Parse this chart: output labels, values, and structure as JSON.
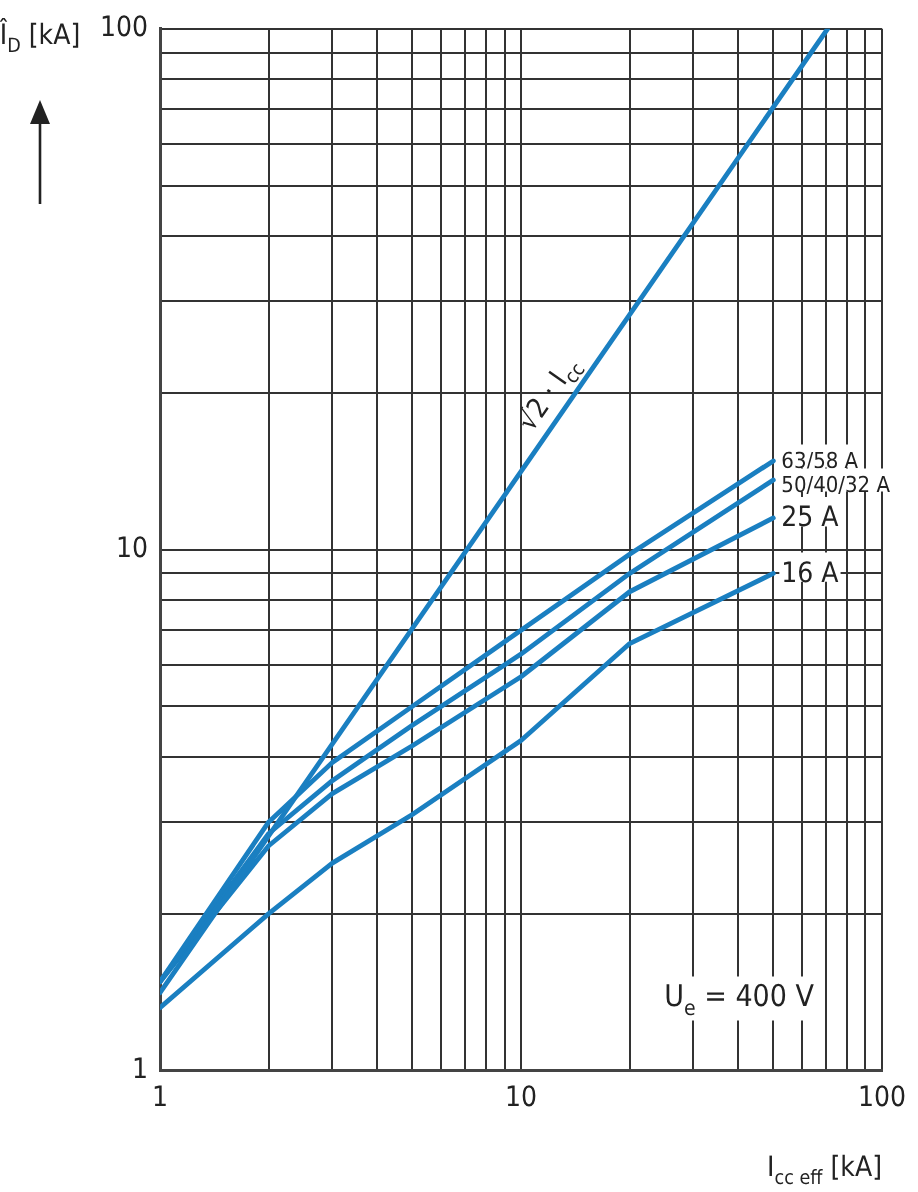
{
  "chart_data": {
    "type": "line",
    "xlabel": "I$_{cc eff}$ [kA]",
    "ylabel": "Î$_{D}$ [kA]",
    "annotations": [
      "U$_{e}$ = 400 V"
    ],
    "log": "xy",
    "grid": true,
    "legend": false,
    "marker": "none",
    "line_style": "solid",
    "xlim": [
      1,
      100
    ],
    "ylim": [
      1,
      100
    ],
    "xticks": [
      1,
      {
        "value": 2,
        "label": null
      },
      {
        "value": 3,
        "label": null
      },
      {
        "value": 4,
        "label": null
      },
      {
        "value": 5,
        "label": null
      },
      {
        "value": 6,
        "label": null
      },
      {
        "value": 7,
        "label": null
      },
      {
        "value": 8,
        "label": null
      },
      {
        "value": 9,
        "label": null
      },
      10,
      {
        "value": 20,
        "label": null
      },
      {
        "value": 30,
        "label": null
      },
      {
        "value": 40,
        "label": null
      },
      {
        "value": 50,
        "label": null
      },
      {
        "value": 60,
        "label": null
      },
      {
        "value": 70,
        "label": null
      },
      {
        "value": 80,
        "label": null
      },
      {
        "value": 90,
        "label": null
      },
      100
    ],
    "yticks": [
      1,
      {
        "value": 2,
        "label": null
      },
      {
        "value": 3,
        "label": null
      },
      {
        "value": 4,
        "label": null
      },
      {
        "value": 5,
        "label": null
      },
      {
        "value": 6,
        "label": null
      },
      {
        "value": 7,
        "label": null
      },
      {
        "value": 8,
        "label": null
      },
      {
        "value": 9,
        "label": null
      },
      10,
      {
        "value": 20,
        "label": null
      },
      {
        "value": 30,
        "label": null
      },
      {
        "value": 40,
        "label": null
      },
      {
        "value": 50,
        "label": null
      },
      {
        "value": 60,
        "label": null
      },
      {
        "value": 70,
        "label": null
      },
      {
        "value": 80,
        "label": null
      },
      {
        "value": 90,
        "label": null
      },
      100
    ],
    "series": [
      {
        "name": "√2 · I$_{cc}$",
        "color": "#1a7fc1",
        "x": [
          1,
          70.7
        ],
        "values": [
          1.41,
          100
        ]
      },
      {
        "name": "63/58 A",
        "color": "#1a7fc1",
        "x": [
          1,
          2,
          3,
          5,
          10,
          20,
          50
        ],
        "values": [
          1.48,
          3.0,
          3.9,
          5.0,
          7.0,
          9.8,
          14.8
        ]
      },
      {
        "name": "50/40/32 A",
        "color": "#1a7fc1",
        "x": [
          1,
          2,
          3,
          5,
          10,
          20,
          50
        ],
        "values": [
          1.48,
          2.85,
          3.6,
          4.6,
          6.3,
          9.0,
          13.6
        ]
      },
      {
        "name": "25 A",
        "color": "#1a7fc1",
        "x": [
          1,
          2,
          3,
          5,
          10,
          20,
          50
        ],
        "values": [
          1.48,
          2.7,
          3.4,
          4.2,
          5.7,
          8.3,
          11.5
        ]
      },
      {
        "name": "16 A",
        "color": "#1a7fc1",
        "x": [
          1,
          2,
          3,
          5,
          10,
          20,
          50
        ],
        "values": [
          1.32,
          2.0,
          2.5,
          3.1,
          4.3,
          6.6,
          9.0
        ]
      }
    ]
  }
}
